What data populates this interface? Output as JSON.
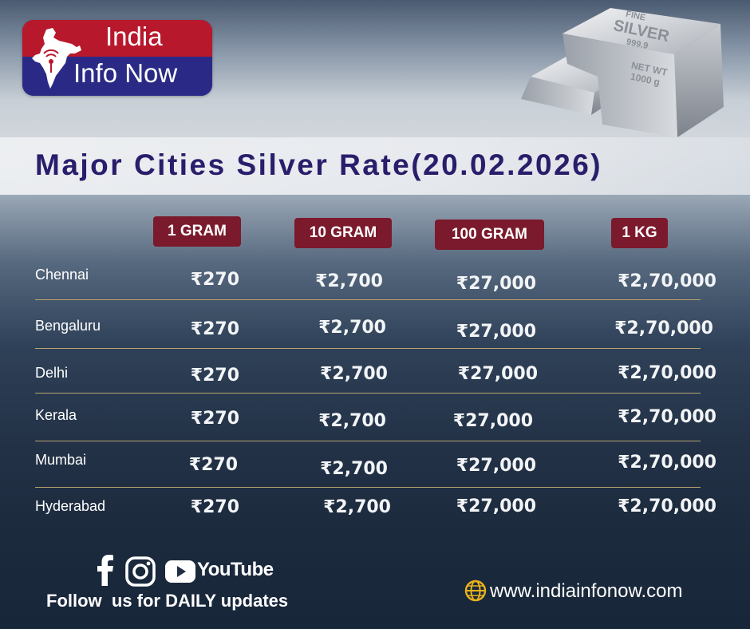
{
  "brand": {
    "line1": "India",
    "line2": "Info Now"
  },
  "bar_engraving": {
    "line1": "FINE",
    "line2": "SILVER",
    "line3": "999.9",
    "line4": "NET WT",
    "line5": "1000 g"
  },
  "title": "Major Cities Silver Rate(20.02.2026)",
  "columns": [
    "1 GRAM",
    "10 GRAM",
    "100 GRAM",
    "1 KG"
  ],
  "rows": [
    {
      "city": "Chennai",
      "g1": "₹270",
      "g10": "₹2,700",
      "g100": "₹27,000",
      "kg1": "₹2,70,000"
    },
    {
      "city": "Bengaluru",
      "g1": "₹270",
      "g10": "₹2,700",
      "g100": "₹27,000",
      "kg1": "₹2,70,000"
    },
    {
      "city": "Delhi",
      "g1": "₹270",
      "g10": "₹2,700",
      "g100": "₹27,000",
      "kg1": "₹2,70,000"
    },
    {
      "city": "Kerala",
      "g1": "₹270",
      "g10": "₹2,700",
      "g100": "₹27,000",
      "kg1": "₹2,70,000"
    },
    {
      "city": "Mumbai",
      "g1": "₹270",
      "g10": "₹2,700",
      "g100": "₹27,000",
      "kg1": "₹2,70,000"
    },
    {
      "city": "Hyderabad",
      "g1": "₹270",
      "g10": "₹2,700",
      "g100": "₹27,000",
      "kg1": "₹2,70,000"
    }
  ],
  "footer": {
    "follow_text": "Follow  us for DAILY updates",
    "youtube_label": "YouTube",
    "website": "www.indiainfonow.com",
    "icons": [
      "facebook-icon",
      "instagram-icon",
      "youtube-icon",
      "globe-icon"
    ]
  },
  "colors": {
    "title_text": "#2a1d6b",
    "column_header_bg": "#7b1a2c",
    "divider": "#b7a36c",
    "brand_red": "#b8182c",
    "brand_blue": "#2a2a86"
  }
}
